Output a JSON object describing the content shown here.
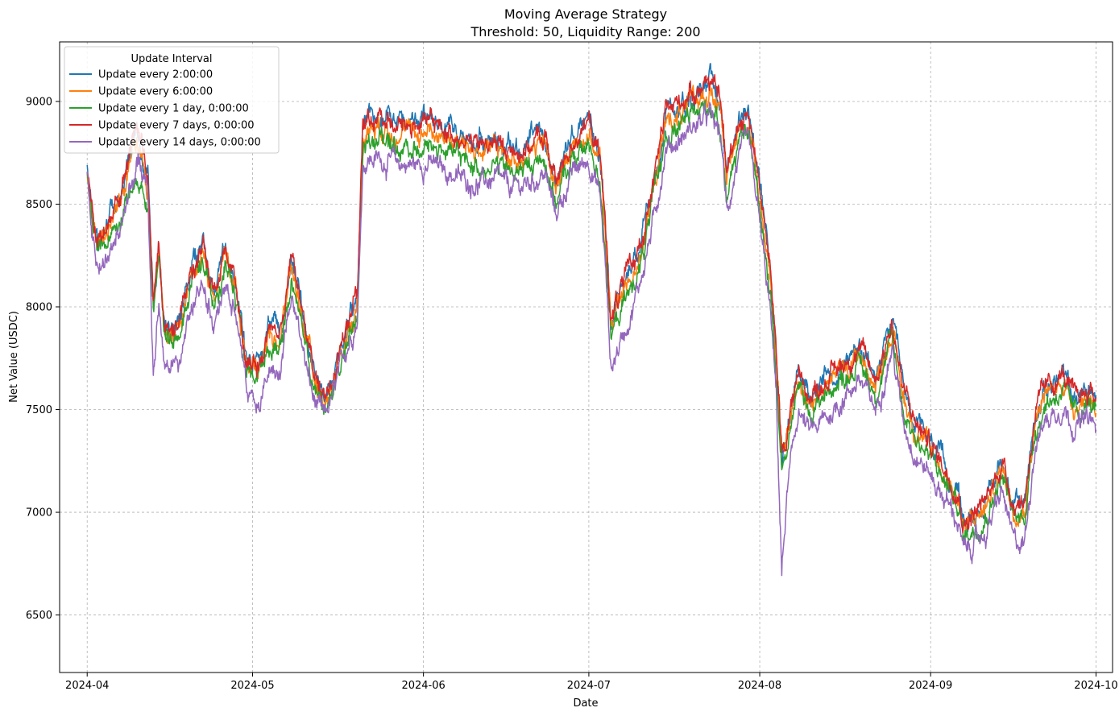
{
  "chart_data": {
    "type": "line",
    "title": "Moving Average Strategy",
    "subtitle": "Threshold: 50, Liquidity Range: 200",
    "xlabel": "Date",
    "ylabel": "Net Value (USDC)",
    "xlim": [
      "2024-03-27",
      "2024-10-04"
    ],
    "ylim": [
      6220,
      9290
    ],
    "x_ticks": [
      "2024-04-01",
      "2024-05-01",
      "2024-06-01",
      "2024-07-01",
      "2024-08-01",
      "2024-09-01",
      "2024-10-01"
    ],
    "x_tick_labels": [
      "2024-04",
      "2024-05",
      "2024-06",
      "2024-07",
      "2024-08",
      "2024-09",
      "2024-10"
    ],
    "y_ticks": [
      6500,
      7000,
      7500,
      8000,
      8500,
      9000
    ],
    "y_tick_labels": [
      "6500",
      "7000",
      "7500",
      "8000",
      "8500",
      "9000"
    ],
    "grid": true,
    "legend_title": "Update Interval",
    "legend_position": "top-left",
    "base_dates": [
      "2024-04-01",
      "2024-04-02",
      "2024-04-03",
      "2024-04-04",
      "2024-04-05",
      "2024-04-06",
      "2024-04-07",
      "2024-04-08",
      "2024-04-09",
      "2024-04-10",
      "2024-04-11",
      "2024-04-12",
      "2024-04-13",
      "2024-04-14",
      "2024-04-15",
      "2024-04-16",
      "2024-04-18",
      "2024-04-20",
      "2024-04-22",
      "2024-04-24",
      "2024-04-26",
      "2024-04-28",
      "2024-04-30",
      "2024-05-02",
      "2024-05-04",
      "2024-05-06",
      "2024-05-08",
      "2024-05-10",
      "2024-05-12",
      "2024-05-14",
      "2024-05-16",
      "2024-05-18",
      "2024-05-20",
      "2024-05-21",
      "2024-05-22",
      "2024-05-24",
      "2024-05-27",
      "2024-05-30",
      "2024-06-02",
      "2024-06-05",
      "2024-06-08",
      "2024-06-11",
      "2024-06-14",
      "2024-06-17",
      "2024-06-20",
      "2024-06-23",
      "2024-06-25",
      "2024-06-28",
      "2024-07-01",
      "2024-07-03",
      "2024-07-04",
      "2024-07-05",
      "2024-07-07",
      "2024-07-09",
      "2024-07-11",
      "2024-07-13",
      "2024-07-15",
      "2024-07-17",
      "2024-07-20",
      "2024-07-23",
      "2024-07-25",
      "2024-07-26",
      "2024-07-28",
      "2024-07-30",
      "2024-08-01",
      "2024-08-03",
      "2024-08-04",
      "2024-08-05",
      "2024-08-06",
      "2024-08-08",
      "2024-08-10",
      "2024-08-13",
      "2024-08-16",
      "2024-08-19",
      "2024-08-22",
      "2024-08-25",
      "2024-08-27",
      "2024-08-29",
      "2024-09-01",
      "2024-09-04",
      "2024-09-06",
      "2024-09-07",
      "2024-09-09",
      "2024-09-11",
      "2024-09-14",
      "2024-09-16",
      "2024-09-18",
      "2024-09-20",
      "2024-09-22",
      "2024-09-25",
      "2024-09-27",
      "2024-09-30",
      "2024-10-01"
    ],
    "series": [
      {
        "name": "Update every 2:00:00",
        "color": "#1f77b4",
        "values": [
          8650,
          8420,
          8320,
          8380,
          8450,
          8520,
          8550,
          8650,
          8780,
          8850,
          8760,
          8620,
          8050,
          8300,
          7900,
          7850,
          7950,
          8200,
          8300,
          8050,
          8300,
          8100,
          7750,
          7700,
          7900,
          7850,
          8250,
          8000,
          7700,
          7550,
          7700,
          7900,
          8050,
          8900,
          8950,
          8950,
          8920,
          8900,
          8920,
          8880,
          8850,
          8800,
          8820,
          8770,
          8800,
          8850,
          8620,
          8830,
          8920,
          8750,
          8400,
          7950,
          8100,
          8200,
          8380,
          8650,
          8950,
          8980,
          9040,
          9120,
          8980,
          8650,
          8900,
          8950,
          8600,
          8150,
          7750,
          7300,
          7400,
          7700,
          7560,
          7650,
          7720,
          7800,
          7650,
          7930,
          7600,
          7450,
          7330,
          7200,
          7100,
          6950,
          7000,
          7050,
          7250,
          7050,
          7050,
          7500,
          7600,
          7670,
          7550,
          7600,
          7550
        ]
      },
      {
        "name": "Update every 6:00:00",
        "color": "#ff7f0e",
        "values": [
          8650,
          8410,
          8300,
          8350,
          8420,
          8490,
          8520,
          8600,
          8700,
          8760,
          8680,
          8560,
          8020,
          8270,
          7880,
          7840,
          7920,
          8170,
          8270,
          8030,
          8270,
          8080,
          7740,
          7690,
          7880,
          7830,
          8200,
          7960,
          7660,
          7530,
          7670,
          7860,
          8010,
          8830,
          8880,
          8880,
          8860,
          8840,
          8860,
          8830,
          8790,
          8750,
          8770,
          8720,
          8750,
          8800,
          8570,
          8780,
          8850,
          8700,
          8360,
          7910,
          8060,
          8160,
          8340,
          8610,
          8900,
          8930,
          8990,
          9060,
          8930,
          8600,
          8850,
          8900,
          8560,
          8110,
          7710,
          7260,
          7370,
          7660,
          7530,
          7620,
          7690,
          7770,
          7620,
          7890,
          7560,
          7420,
          7300,
          7170,
          7070,
          6920,
          6970,
          7020,
          7220,
          7020,
          7020,
          7460,
          7570,
          7640,
          7520,
          7570,
          7520
        ]
      },
      {
        "name": "Update every 1 day, 0:00:00",
        "color": "#2ca02c",
        "values": [
          8650,
          8400,
          8250,
          8300,
          8350,
          8420,
          8450,
          8520,
          8600,
          8650,
          8580,
          8500,
          7980,
          8220,
          7840,
          7810,
          7880,
          8120,
          8220,
          7990,
          8220,
          8040,
          7710,
          7650,
          7840,
          7790,
          8130,
          7900,
          7610,
          7490,
          7630,
          7810,
          7960,
          8760,
          8800,
          8800,
          8790,
          8770,
          8790,
          8760,
          8720,
          8680,
          8700,
          8650,
          8680,
          8730,
          8510,
          8720,
          8780,
          8640,
          8300,
          7850,
          8000,
          8100,
          8280,
          8550,
          8840,
          8870,
          8930,
          8990,
          8870,
          8540,
          8790,
          8840,
          8500,
          8060,
          7670,
          7210,
          7320,
          7610,
          7480,
          7580,
          7650,
          7730,
          7580,
          7840,
          7510,
          7380,
          7260,
          7130,
          7030,
          6880,
          6930,
          6980,
          7180,
          6980,
          6980,
          7410,
          7530,
          7600,
          7480,
          7530,
          7480
        ]
      },
      {
        "name": "Update every 7 days, 0:00:00",
        "color": "#d62728",
        "values": [
          8650,
          8420,
          8320,
          8380,
          8450,
          8520,
          8550,
          8650,
          8780,
          8850,
          8760,
          8620,
          8050,
          8300,
          7900,
          7850,
          7950,
          8200,
          8300,
          8050,
          8300,
          8100,
          7750,
          7700,
          7900,
          7850,
          8250,
          8000,
          7700,
          7550,
          7700,
          7900,
          8050,
          8880,
          8930,
          8930,
          8900,
          8880,
          8900,
          8860,
          8830,
          8780,
          8800,
          8750,
          8780,
          8830,
          8600,
          8810,
          8900,
          8730,
          8400,
          7950,
          8100,
          8200,
          8380,
          8650,
          8950,
          8990,
          9060,
          9110,
          8980,
          8650,
          8900,
          8950,
          8600,
          8150,
          7750,
          7300,
          7400,
          7700,
          7560,
          7650,
          7720,
          7800,
          7650,
          7930,
          7600,
          7450,
          7330,
          7200,
          7100,
          6950,
          7000,
          7050,
          7250,
          7050,
          7050,
          7500,
          7600,
          7670,
          7550,
          7600,
          7550
        ]
      },
      {
        "name": "Update every 14 days, 0:00:00",
        "color": "#9467bd",
        "values": [
          8650,
          8380,
          8150,
          8200,
          8250,
          8300,
          8350,
          8450,
          8600,
          8700,
          8620,
          8550,
          7650,
          8000,
          7700,
          7700,
          7750,
          8000,
          8100,
          7900,
          8100,
          7950,
          7600,
          7550,
          7700,
          7650,
          8050,
          7800,
          7550,
          7450,
          7600,
          7800,
          7950,
          8700,
          8720,
          8720,
          8700,
          8690,
          8700,
          8660,
          8620,
          8600,
          8620,
          8570,
          8600,
          8650,
          8450,
          8650,
          8720,
          8550,
          8200,
          7700,
          7850,
          8000,
          8200,
          8450,
          8780,
          8800,
          8880,
          8930,
          8820,
          8450,
          8720,
          8800,
          8400,
          7950,
          7550,
          6700,
          7100,
          7500,
          7380,
          7450,
          7550,
          7650,
          7500,
          7800,
          7450,
          7300,
          7180,
          7050,
          6950,
          6800,
          6850,
          6900,
          7100,
          6850,
          6850,
          7350,
          7450,
          7520,
          7420,
          7450,
          7400
        ]
      }
    ]
  }
}
